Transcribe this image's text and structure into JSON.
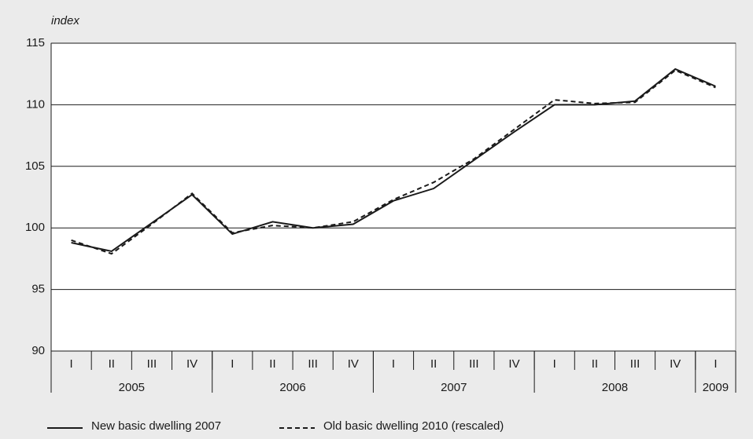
{
  "chart_data": {
    "type": "line",
    "y_axis_label": "index",
    "categories": [
      "I",
      "II",
      "III",
      "IV",
      "I",
      "II",
      "III",
      "IV",
      "I",
      "II",
      "III",
      "IV",
      "I",
      "II",
      "III",
      "IV",
      "I"
    ],
    "groups": [
      {
        "label": "2005",
        "size": 4
      },
      {
        "label": "2006",
        "size": 4
      },
      {
        "label": "2007",
        "size": 4
      },
      {
        "label": "2008",
        "size": 4
      },
      {
        "label": "2009",
        "size": 1
      }
    ],
    "series": [
      {
        "name": "New basic dwelling 2007",
        "color": "#1a1a1a",
        "line_style": "solid",
        "values": [
          98.8,
          98.1,
          100.4,
          102.7,
          99.5,
          100.5,
          100.0,
          100.3,
          102.2,
          103.2,
          105.5,
          107.8,
          110.0,
          110.0,
          110.3,
          112.9,
          111.5
        ]
      },
      {
        "name": "Old basic dwelling 2010 (rescaled)",
        "color": "#1a1a1a",
        "line_style": "dashed",
        "values": [
          99.0,
          97.9,
          100.3,
          102.8,
          99.6,
          100.2,
          100.0,
          100.5,
          102.3,
          103.7,
          105.6,
          108.0,
          110.4,
          110.1,
          110.2,
          112.8,
          111.4
        ]
      }
    ],
    "ylim": [
      90,
      115
    ],
    "yticks": [
      90,
      95,
      100,
      105,
      110,
      115
    ],
    "grid": true
  }
}
